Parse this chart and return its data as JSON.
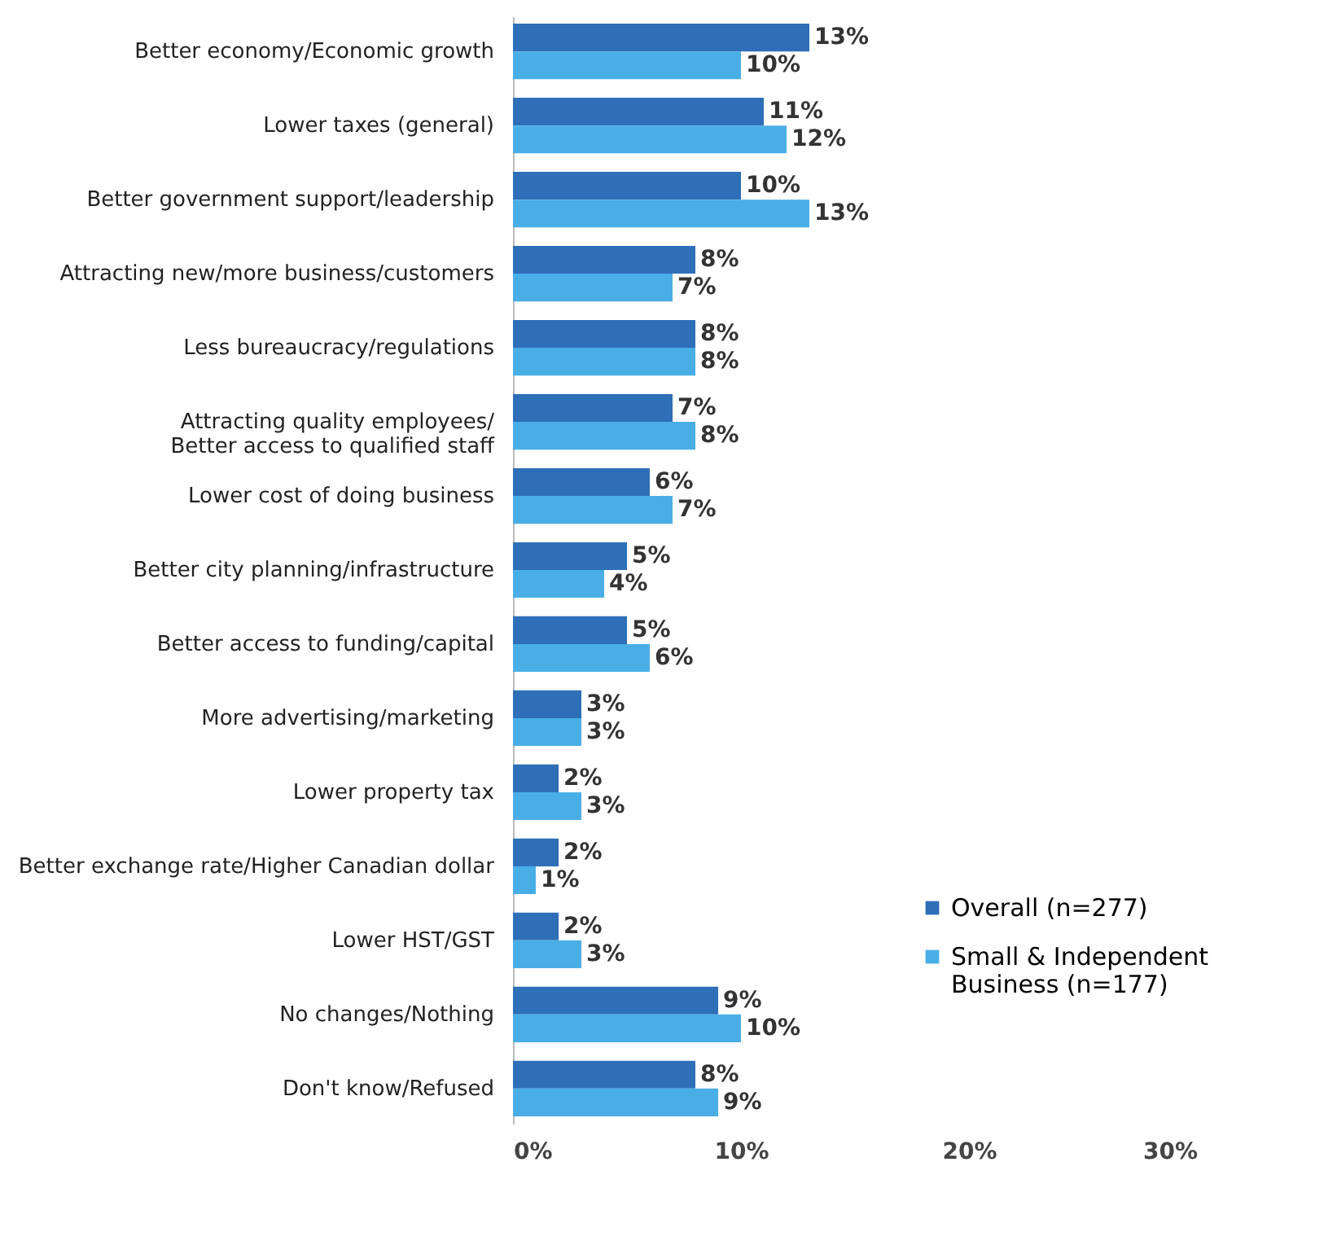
{
  "chart_data": {
    "type": "bar",
    "orientation": "horizontal",
    "categories": [
      "Better economy/Economic growth",
      "Lower taxes (general)",
      "Better government support/leadership",
      "Attracting new/more business/customers",
      "Less bureaucracy/regulations",
      "Attracting quality employees/\nBetter access to qualified staff",
      "Lower cost of doing business",
      "Better city planning/infrastructure",
      "Better access to funding/capital",
      "More advertising/marketing",
      "Lower property tax",
      "Better exchange rate/Higher Canadian dollar",
      "Lower HST/GST",
      "No changes/Nothing",
      "Don't know/Refused"
    ],
    "series": [
      {
        "name": "Overall (n=277)",
        "color": "#2e6fb8",
        "values": [
          13,
          11,
          10,
          8,
          8,
          7,
          6,
          5,
          5,
          3,
          2,
          2,
          2,
          9,
          8
        ],
        "value_labels": [
          "13%",
          "11%",
          "10%",
          "8%",
          "8%",
          "7%",
          "6%",
          "5%",
          "5%",
          "3%",
          "2%",
          "2%",
          "2%",
          "9%",
          "8%"
        ]
      },
      {
        "name": "Small & Independent\nBusiness (n=177)",
        "color": "#4aaee6",
        "values": [
          10,
          12,
          13,
          7,
          8,
          8,
          7,
          4,
          6,
          3,
          3,
          1,
          3,
          10,
          9
        ],
        "value_labels": [
          "10%",
          "12%",
          "13%",
          "7%",
          "8%",
          "8%",
          "7%",
          "4%",
          "6%",
          "3%",
          "3%",
          "1%",
          "3%",
          "10%",
          "9%"
        ]
      }
    ],
    "xlim": [
      0,
      30
    ],
    "xticks": [
      {
        "value": 0,
        "label": "0%"
      },
      {
        "value": 10,
        "label": "10%"
      },
      {
        "value": 20,
        "label": "20%"
      },
      {
        "value": 30,
        "label": "30%"
      }
    ],
    "grid": false,
    "legend": "bottom right"
  }
}
